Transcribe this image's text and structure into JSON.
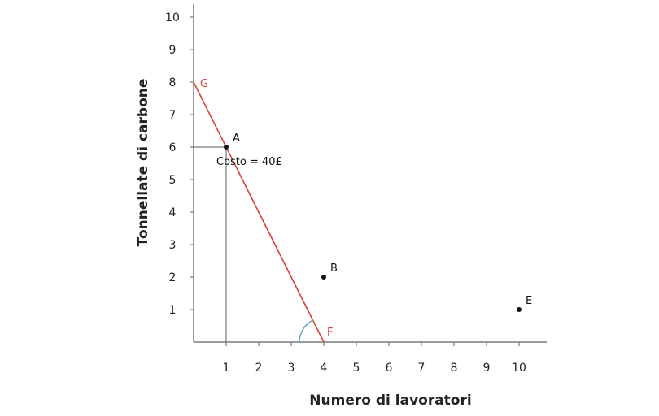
{
  "chart_data": {
    "type": "line",
    "xlabel": "Numero di lavoratori",
    "ylabel": "Tonnellate di carbone",
    "xlim": [
      0,
      10.85
    ],
    "ylim": [
      0,
      10.4
    ],
    "x_ticks": [
      1,
      2,
      3,
      4,
      5,
      6,
      7,
      8,
      9,
      10
    ],
    "y_ticks": [
      1,
      2,
      3,
      4,
      5,
      6,
      7,
      8,
      9,
      10
    ],
    "grid": false,
    "isocost_line": {
      "label": "Costo = 40£",
      "start": {
        "name": "G",
        "x": 0,
        "y": 8
      },
      "end": {
        "name": "F",
        "x": 4,
        "y": 0
      },
      "color": "#d8412f"
    },
    "points": [
      {
        "name": "A",
        "x": 1,
        "y": 6
      },
      {
        "name": "B",
        "x": 4,
        "y": 2
      },
      {
        "name": "E",
        "x": 10,
        "y": 1
      }
    ],
    "angle_marker_color": "#5b9fc4",
    "axis_color": "#7a7a7a"
  }
}
